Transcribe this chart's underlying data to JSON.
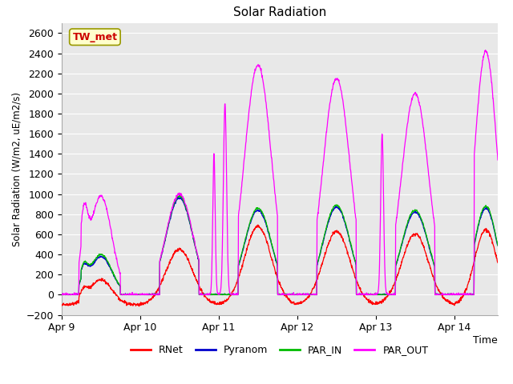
{
  "title": "Solar Radiation",
  "ylabel": "Solar Radiation (W/m2, uE/m2/s)",
  "xlabel": "Time",
  "ylim": [
    -200,
    2700
  ],
  "yticks": [
    -200,
    0,
    200,
    400,
    600,
    800,
    1000,
    1200,
    1400,
    1600,
    1800,
    2000,
    2200,
    2400,
    2600
  ],
  "xtick_labels": [
    "Apr 9",
    "Apr 10",
    "Apr 11",
    "Apr 12",
    "Apr 13",
    "Apr 14"
  ],
  "colors": {
    "RNet": "#ff0000",
    "Pyranom": "#0000cc",
    "PAR_IN": "#00bb00",
    "PAR_OUT": "#ff00ff"
  },
  "site_label": "TW_met",
  "site_label_color": "#cc0000",
  "site_label_bg": "#ffffcc",
  "site_label_border": "#999900",
  "plot_bg": "#e8e8e8",
  "grid_color": "#ffffff",
  "fig_bg": "#ffffff"
}
